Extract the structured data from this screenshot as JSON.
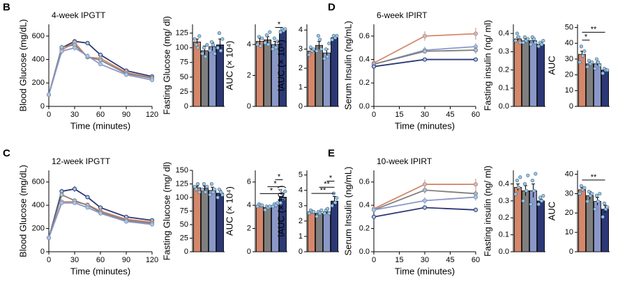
{
  "chart_data": [
    {
      "type": "line",
      "panel": "B",
      "title": "4-week IPGTT",
      "xlabel": "Time (minutes)",
      "ylabel": "Blood Glucose (mg/dL)",
      "x": [
        0,
        15,
        30,
        45,
        60,
        90,
        120
      ],
      "xlim": [
        0,
        120
      ],
      "xticks": [
        0,
        30,
        60,
        90,
        120
      ],
      "ylim": [
        0,
        700
      ],
      "yticks": [
        0,
        200,
        400,
        600
      ],
      "series": [
        {
          "color": "#2b3875",
          "values": [
            100,
            500,
            555,
            540,
            440,
            305,
            255
          ],
          "errors": [
            10,
            20,
            20,
            15,
            15,
            12,
            10
          ]
        },
        {
          "color": "#d4876b",
          "values": [
            100,
            480,
            545,
            420,
            410,
            290,
            245
          ],
          "errors": [
            10,
            25,
            20,
            15,
            15,
            12,
            10
          ]
        },
        {
          "color": "#7f7f7f",
          "values": [
            100,
            505,
            525,
            420,
            395,
            280,
            240
          ],
          "errors": [
            10,
            20,
            20,
            15,
            15,
            12,
            10
          ]
        },
        {
          "color": "#8a98c8",
          "values": [
            100,
            470,
            500,
            430,
            360,
            270,
            225
          ],
          "errors": [
            10,
            25,
            25,
            20,
            15,
            12,
            10
          ]
        }
      ]
    },
    {
      "type": "bar",
      "ylabel": "Fasting Glucose (mg/ dl)",
      "ylim": [
        0,
        140
      ],
      "yticks": [
        0,
        25,
        50,
        75,
        100,
        125
      ],
      "colors": [
        "#d4876b",
        "#7f7f7f",
        "#8a98c8",
        "#2b3875"
      ],
      "values": [
        110,
        95,
        102,
        105
      ],
      "errors": [
        5,
        8,
        7,
        10
      ],
      "points": [
        [
          115,
          105,
          100,
          120
        ],
        [
          90,
          100,
          85,
          105
        ],
        [
          95,
          110,
          105,
          90
        ],
        [
          100,
          125,
          95,
          115
        ]
      ]
    },
    {
      "type": "bar",
      "ylabel": "AUC (× 10⁴)",
      "ylim": [
        0,
        5.3
      ],
      "yticks": [
        0,
        2,
        4
      ],
      "colors": [
        "#d4876b",
        "#7f7f7f",
        "#8a98c8",
        "#2b3875"
      ],
      "values": [
        4.2,
        4.3,
        4.0,
        4.9
      ],
      "errors": [
        0.2,
        0.2,
        0.2,
        0.1
      ],
      "points": [
        [
          4.0,
          4.5,
          3.9,
          4.4
        ],
        [
          4.1,
          4.6,
          4.0,
          4.8
        ],
        [
          3.7,
          4.4,
          3.8,
          4.2
        ],
        [
          4.8,
          5.0,
          4.9,
          5.0
        ]
      ],
      "annotations": [
        {
          "text": "*",
          "from": 2,
          "to": 3,
          "y": 5.1
        }
      ]
    },
    {
      "type": "bar",
      "ylabel": "iAUC (× 10⁴)",
      "ylim": [
        0,
        4.3
      ],
      "yticks": [
        0,
        1,
        2,
        3,
        4
      ],
      "colors": [
        "#d4876b",
        "#7f7f7f",
        "#8a98c8",
        "#2b3875"
      ],
      "values": [
        2.9,
        3.2,
        2.8,
        3.6
      ],
      "errors": [
        0.1,
        0.2,
        0.2,
        0.1
      ],
      "points": [
        [
          2.7,
          3.1,
          2.9,
          3.0
        ],
        [
          2.9,
          3.7,
          3.5,
          3.0
        ],
        [
          2.5,
          3.0,
          2.6,
          3.3
        ],
        [
          3.5,
          3.7,
          3.6,
          3.7
        ]
      ]
    },
    {
      "type": "line",
      "panel": "D",
      "title": "6-week IPIRT",
      "xlabel": "Time (minutes)",
      "ylabel": "Serum Insulin (ng/mL)",
      "x": [
        0,
        30,
        60
      ],
      "xlim": [
        0,
        60
      ],
      "xticks": [
        0,
        15,
        30,
        45,
        60
      ],
      "ylim": [
        0,
        0.7
      ],
      "yticks": [
        {
          "value": 0,
          "label": "0.0"
        },
        0.2,
        0.4,
        0.6
      ],
      "series": [
        {
          "color": "#d4876b",
          "values": [
            0.37,
            0.6,
            0.62
          ],
          "errors": [
            0.01,
            0.04,
            0.05
          ]
        },
        {
          "color": "#8a98c8",
          "values": [
            0.36,
            0.48,
            0.51
          ],
          "errors": [
            0.01,
            0.03,
            0.03
          ]
        },
        {
          "color": "#7f7f7f",
          "values": [
            0.36,
            0.47,
            0.48
          ],
          "errors": [
            0.01,
            0.02,
            0.03
          ]
        },
        {
          "color": "#2b3875",
          "values": [
            0.34,
            0.4,
            0.4
          ],
          "errors": [
            0.01,
            0.01,
            0.01
          ]
        }
      ]
    },
    {
      "type": "bar",
      "ylabel": "Fasting insulin (ng/ ml)",
      "ylim": [
        0,
        0.45
      ],
      "yticks": [
        {
          "value": 0,
          "label": "0.0"
        },
        0.1,
        0.2,
        0.3,
        0.4
      ],
      "colors": [
        "#d4876b",
        "#7f7f7f",
        "#8a98c8",
        "#2b3875"
      ],
      "values": [
        0.37,
        0.36,
        0.36,
        0.34
      ],
      "errors": [
        0.01,
        0.01,
        0.01,
        0.01
      ],
      "points": [
        [
          0.36,
          0.4,
          0.38,
          0.35
        ],
        [
          0.35,
          0.38,
          0.36,
          0.37
        ],
        [
          0.34,
          0.38,
          0.37,
          0.35
        ],
        [
          0.33,
          0.35,
          0.34,
          0.36
        ]
      ]
    },
    {
      "type": "bar",
      "ylabel": "AUC",
      "ylim": [
        0,
        52
      ],
      "yticks": [
        0,
        10,
        20,
        30,
        40,
        50
      ],
      "colors": [
        "#d4876b",
        "#7f7f7f",
        "#8a98c8",
        "#2b3875"
      ],
      "values": [
        33,
        27,
        27,
        23
      ],
      "errors": [
        2,
        1,
        1,
        1
      ],
      "points": [
        [
          28,
          38,
          32,
          35
        ],
        [
          25,
          29,
          27,
          28
        ],
        [
          24,
          30,
          28,
          26
        ],
        [
          21,
          24,
          23,
          23
        ]
      ],
      "annotations": [
        {
          "text": "*",
          "from": 0,
          "to": 1,
          "y": 42
        },
        {
          "text": "**",
          "from": 0,
          "to": 3,
          "y": 47
        }
      ]
    },
    {
      "type": "line",
      "panel": "C",
      "title": "12-week IPGTT",
      "xlabel": "Time (minutes)",
      "ylabel": "Blood Glucose (mg/dL)",
      "x": [
        0,
        15,
        30,
        45,
        60,
        90,
        120
      ],
      "xlim": [
        0,
        120
      ],
      "xticks": [
        0,
        30,
        60,
        90,
        120
      ],
      "ylim": [
        0,
        700
      ],
      "yticks": [
        0,
        200,
        400,
        600
      ],
      "series": [
        {
          "color": "#2b3875",
          "values": [
            120,
            520,
            540,
            470,
            380,
            300,
            270
          ],
          "errors": [
            10,
            20,
            25,
            15,
            12,
            12,
            10
          ]
        },
        {
          "color": "#d4876b",
          "values": [
            120,
            430,
            430,
            405,
            350,
            280,
            255
          ],
          "errors": [
            10,
            15,
            15,
            15,
            12,
            10,
            10
          ]
        },
        {
          "color": "#7f7f7f",
          "values": [
            120,
            490,
            440,
            400,
            340,
            270,
            245
          ],
          "errors": [
            10,
            20,
            20,
            15,
            12,
            10,
            10
          ]
        },
        {
          "color": "#8a98c8",
          "values": [
            120,
            420,
            420,
            380,
            330,
            260,
            235
          ],
          "errors": [
            10,
            15,
            15,
            12,
            12,
            10,
            10
          ]
        }
      ]
    },
    {
      "type": "bar",
      "ylabel": "Fasting Glucose (mg/ dl)",
      "ylim": [
        0,
        150
      ],
      "yticks": [
        0,
        25,
        50,
        75,
        100,
        125,
        150
      ],
      "colors": [
        "#d4876b",
        "#7f7f7f",
        "#8a98c8",
        "#2b3875"
      ],
      "values": [
        118,
        117,
        113,
        108
      ],
      "errors": [
        3,
        4,
        6,
        5
      ],
      "points": [
        [
          120,
          115,
          125,
          110
        ],
        [
          115,
          125,
          110,
          120
        ],
        [
          105,
          125,
          110,
          115
        ],
        [
          100,
          115,
          110,
          105
        ]
      ]
    },
    {
      "type": "bar",
      "ylabel": "AUC (× 10⁴)",
      "ylim": [
        0,
        7
      ],
      "yticks": [
        0,
        2,
        4,
        6
      ],
      "colors": [
        "#d4876b",
        "#7f7f7f",
        "#8a98c8",
        "#2b3875"
      ],
      "values": [
        4.0,
        3.8,
        4.0,
        4.7
      ],
      "errors": [
        0.1,
        0.1,
        0.1,
        0.3
      ],
      "points": [
        [
          3.9,
          4.1,
          4.0,
          4.0
        ],
        [
          3.6,
          3.9,
          3.8,
          3.9
        ],
        [
          3.9,
          4.1,
          4.0,
          4.2
        ],
        [
          4.2,
          5.0,
          4.5,
          5.2
        ]
      ],
      "annotations": [
        {
          "text": "*",
          "from": 2,
          "to": 3,
          "y": 6.2
        },
        {
          "text": "*",
          "from": 1,
          "to": 3,
          "y": 5.6
        },
        {
          "text": "*",
          "from": 0,
          "to": 3,
          "y": 5.0
        }
      ]
    },
    {
      "type": "bar",
      "ylabel": "iAUC (× 10⁴)",
      "ylim": [
        0,
        5.3
      ],
      "yticks": [
        0,
        1,
        2,
        3,
        4,
        5
      ],
      "colors": [
        "#d4876b",
        "#7f7f7f",
        "#8a98c8",
        "#2b3875"
      ],
      "values": [
        2.6,
        2.5,
        2.6,
        3.3
      ],
      "errors": [
        0.1,
        0.1,
        0.1,
        0.3
      ],
      "points": [
        [
          2.5,
          2.7,
          2.6,
          2.6
        ],
        [
          2.3,
          2.6,
          2.5,
          2.7
        ],
        [
          2.5,
          2.7,
          2.8,
          2.5
        ],
        [
          3.0,
          3.8,
          3.2,
          3.5
        ]
      ],
      "annotations": [
        {
          "text": "*",
          "from": 2,
          "to": 3,
          "y": 4.6
        },
        {
          "text": "**",
          "from": 1,
          "to": 3,
          "y": 4.2
        },
        {
          "text": "**",
          "from": 0,
          "to": 3,
          "y": 3.8
        }
      ]
    },
    {
      "type": "line",
      "panel": "E",
      "title": "10-week IPIRT",
      "xlabel": "Time (minutes)",
      "ylabel": "Serum Insulin (ng/mL)",
      "x": [
        0,
        30,
        60
      ],
      "xlim": [
        0,
        60
      ],
      "xticks": [
        0,
        15,
        30,
        45,
        60
      ],
      "ylim": [
        0,
        0.7
      ],
      "yticks": [
        {
          "value": 0,
          "label": "0.0"
        },
        0.2,
        0.4,
        0.6
      ],
      "series": [
        {
          "color": "#d4876b",
          "values": [
            0.37,
            0.58,
            0.58
          ],
          "errors": [
            0.01,
            0.04,
            0.05
          ]
        },
        {
          "color": "#7f7f7f",
          "values": [
            0.36,
            0.53,
            0.5
          ],
          "errors": [
            0.01,
            0.03,
            0.03
          ]
        },
        {
          "color": "#8a98c8",
          "values": [
            0.36,
            0.44,
            0.47
          ],
          "errors": [
            0.01,
            0.03,
            0.03
          ]
        },
        {
          "color": "#2b3875",
          "values": [
            0.3,
            0.38,
            0.36
          ],
          "errors": [
            0.01,
            0.02,
            0.02
          ]
        }
      ]
    },
    {
      "type": "bar",
      "ylabel": "Fasting insulin (ng/ ml)",
      "ylim": [
        0,
        0.48
      ],
      "yticks": [
        {
          "value": 0,
          "label": "0.0"
        },
        0.1,
        0.2,
        0.3,
        0.4
      ],
      "colors": [
        "#d4876b",
        "#7f7f7f",
        "#8a98c8",
        "#2b3875"
      ],
      "values": [
        0.38,
        0.36,
        0.36,
        0.3
      ],
      "errors": [
        0.02,
        0.03,
        0.04,
        0.01
      ],
      "points": [
        [
          0.34,
          0.42,
          0.38,
          0.44
        ],
        [
          0.3,
          0.4,
          0.36,
          0.45
        ],
        [
          0.28,
          0.42,
          0.36,
          0.46
        ],
        [
          0.28,
          0.32,
          0.3,
          0.33
        ]
      ]
    },
    {
      "type": "bar",
      "ylabel": "AUC",
      "ylim": [
        0,
        42
      ],
      "yticks": [
        0,
        10,
        20,
        30,
        40
      ],
      "colors": [
        "#d4876b",
        "#7f7f7f",
        "#8a98c8",
        "#2b3875"
      ],
      "values": [
        32,
        29,
        26,
        22
      ],
      "errors": [
        1,
        2,
        2,
        2
      ],
      "points": [
        [
          30,
          34,
          32,
          33
        ],
        [
          26,
          31,
          29,
          30
        ],
        [
          22,
          29,
          26,
          30
        ],
        [
          18,
          25,
          22,
          23
        ]
      ],
      "annotations": [
        {
          "text": "**",
          "from": 0,
          "to": 3,
          "y": 37
        }
      ]
    }
  ]
}
